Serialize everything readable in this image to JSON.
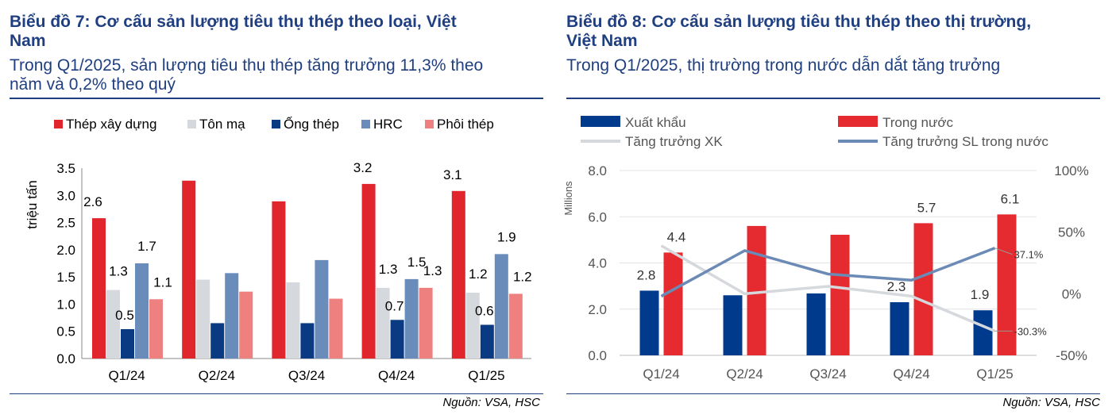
{
  "left": {
    "title_line1": "Biểu đồ 7: Cơ cấu sản lượng tiêu thụ thép theo loại, Việt",
    "title_line2": "Nam",
    "subtitle_line1": "Trong Q1/2025, sản lượng tiêu thụ thép tăng trưởng 11,3% theo",
    "subtitle_line2": "năm và 0,2% theo quý",
    "source": "Nguồn: VSA, HSC"
  },
  "right": {
    "title_line1": "Biểu đồ 8: Cơ cấu sản lượng tiêu thụ thép theo thị trường,",
    "title_line2": "Việt Nam",
    "subtitle_line1": "Trong Q1/2025, thị trường trong nước dẫn dắt tăng trưởng",
    "source": "Nguồn: VSA, HSC"
  },
  "chart_data": [
    {
      "type": "bar",
      "ylabel": "triệu tấn",
      "ylim": [
        0,
        3.5
      ],
      "yticks": [
        "0.0",
        "0.5",
        "1.0",
        "1.5",
        "2.0",
        "2.5",
        "3.0",
        "3.5"
      ],
      "categories": [
        "Q1/24",
        "Q2/24",
        "Q3/24",
        "Q4/24",
        "Q1/25"
      ],
      "legend_placement": "top",
      "series": [
        {
          "name": "Thép xây dựng",
          "color": "#e0262c",
          "values": [
            2.58,
            3.27,
            2.89,
            3.21,
            3.08
          ],
          "labels": [
            "2.6",
            "",
            "",
            "3.2",
            "3.1"
          ]
        },
        {
          "name": "Tôn mạ",
          "color": "#d5d9de",
          "values": [
            1.26,
            1.45,
            1.4,
            1.3,
            1.21
          ],
          "labels": [
            "1.3",
            "",
            "",
            "1.3",
            "1.2"
          ]
        },
        {
          "name": "Ống thép",
          "color": "#0a3a82",
          "values": [
            0.54,
            0.65,
            0.65,
            0.71,
            0.62
          ],
          "labels": [
            "0.5",
            "",
            "",
            "0.7",
            "0.6"
          ]
        },
        {
          "name": "HRC",
          "color": "#6a8cba",
          "values": [
            1.75,
            1.57,
            1.81,
            1.46,
            1.92
          ],
          "labels": [
            "1.7",
            "",
            "",
            "1.5",
            "1.9"
          ]
        },
        {
          "name": "Phôi thép",
          "color": "#ef8080",
          "values": [
            1.09,
            1.23,
            1.1,
            1.3,
            1.19
          ],
          "labels": [
            "1.1",
            "",
            "",
            "1.3",
            "1.2"
          ]
        }
      ]
    },
    {
      "type": "bar",
      "ylabel": "Millions",
      "ylim": [
        0,
        8
      ],
      "yticks": [
        "0.0",
        "2.0",
        "4.0",
        "6.0",
        "8.0"
      ],
      "y2lim": [
        -50,
        100
      ],
      "y2ticks": [
        "-50%",
        "0%",
        "50%",
        "100%"
      ],
      "categories": [
        "Q1/24",
        "Q2/24",
        "Q3/24",
        "Q4/24",
        "Q1/25"
      ],
      "legend_placement": "top",
      "series": [
        {
          "name": "Xuất khẩu",
          "kind": "bar",
          "color": "#003a8c",
          "values": [
            2.8,
            2.6,
            2.68,
            2.3,
            1.95
          ],
          "labels": [
            "2.8",
            "",
            "",
            "2.3",
            "1.9"
          ]
        },
        {
          "name": "Trong nước",
          "kind": "bar",
          "color": "#e52b2f",
          "values": [
            4.45,
            5.6,
            5.22,
            5.72,
            6.1
          ],
          "labels": [
            "4.4",
            "",
            "",
            "5.7",
            "6.1"
          ]
        },
        {
          "name": "Tăng trưởng XK",
          "kind": "line",
          "axis": "right",
          "color": "#d5d8dc",
          "values": [
            39,
            0,
            6,
            -2,
            -30.3
          ]
        },
        {
          "name": "Tăng trưởng SL trong nước",
          "kind": "line",
          "axis": "right",
          "color": "#6b8ab5",
          "values": [
            -2,
            35,
            16,
            11,
            37.1
          ]
        }
      ],
      "annotations": [
        "37.1%",
        "-30.3%"
      ]
    }
  ]
}
